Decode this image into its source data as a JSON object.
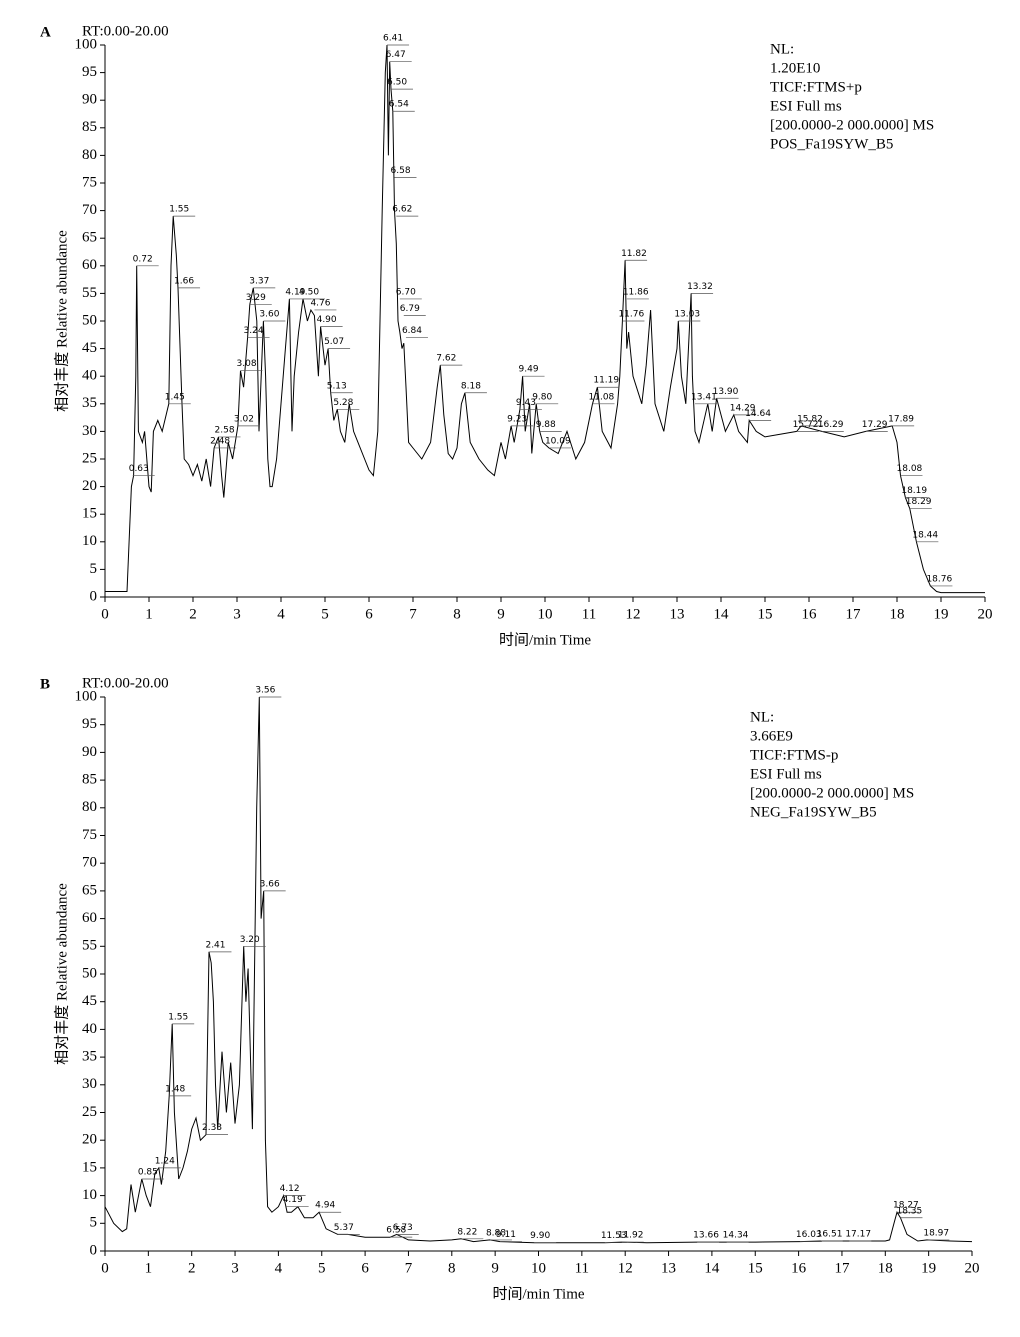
{
  "chart_data": [
    {
      "type": "line",
      "panel": "A",
      "range_label": "RT:0.00-20.00",
      "ylabel": "相对丰度 Relative abundance",
      "xlabel": "时间/min Time",
      "info": [
        "NL:",
        "1.20E10",
        "TICF:FTMS+p",
        "ESI Full ms",
        "[200.0000-2 000.0000] MS",
        "POS_Fa19SYW_B5"
      ],
      "color": "#000000",
      "xlim": [
        0,
        20
      ],
      "ylim": [
        0,
        100
      ],
      "xticks": [
        0,
        1,
        2,
        3,
        4,
        5,
        6,
        7,
        8,
        9,
        10,
        11,
        12,
        13,
        14,
        15,
        16,
        17,
        18,
        19,
        20
      ],
      "yticks": [
        0,
        5,
        10,
        15,
        20,
        25,
        30,
        35,
        40,
        45,
        50,
        55,
        60,
        65,
        70,
        75,
        80,
        85,
        90,
        95,
        100
      ],
      "x": [
        0,
        0.5,
        0.6,
        0.65,
        0.7,
        0.72,
        0.76,
        0.85,
        0.9,
        1.0,
        1.05,
        1.1,
        1.2,
        1.3,
        1.45,
        1.5,
        1.55,
        1.62,
        1.66,
        1.75,
        1.8,
        1.9,
        2.0,
        2.1,
        2.2,
        2.3,
        2.4,
        2.48,
        2.58,
        2.65,
        2.7,
        2.8,
        2.9,
        3.02,
        3.08,
        3.15,
        3.24,
        3.29,
        3.37,
        3.45,
        3.5,
        3.6,
        3.65,
        3.7,
        3.75,
        3.8,
        3.9,
        4.0,
        4.1,
        4.19,
        4.25,
        4.3,
        4.4,
        4.5,
        4.6,
        4.68,
        4.76,
        4.85,
        4.9,
        5.0,
        5.07,
        5.13,
        5.2,
        5.28,
        5.35,
        5.45,
        5.55,
        5.65,
        5.75,
        5.9,
        6.0,
        6.1,
        6.2,
        6.3,
        6.37,
        6.41,
        6.44,
        6.47,
        6.5,
        6.54,
        6.58,
        6.62,
        6.66,
        6.7,
        6.75,
        6.79,
        6.84,
        6.9,
        7.0,
        7.2,
        7.4,
        7.55,
        7.62,
        7.7,
        7.8,
        7.9,
        8.0,
        8.1,
        8.18,
        8.3,
        8.5,
        8.7,
        8.85,
        9.0,
        9.1,
        9.23,
        9.3,
        9.43,
        9.49,
        9.55,
        9.65,
        9.7,
        9.8,
        9.88,
        9.95,
        10.09,
        10.3,
        10.5,
        10.7,
        10.9,
        11.08,
        11.19,
        11.3,
        11.5,
        11.65,
        11.7,
        11.76,
        11.82,
        11.86,
        11.9,
        12.0,
        12.2,
        12.3,
        12.4,
        12.5,
        12.7,
        12.85,
        13.0,
        13.03,
        13.1,
        13.2,
        13.32,
        13.35,
        13.41,
        13.5,
        13.7,
        13.8,
        13.9,
        14.1,
        14.29,
        14.4,
        14.6,
        14.64,
        14.8,
        15.0,
        15.72,
        15.82,
        16.29,
        16.8,
        17.29,
        17.89,
        18.0,
        18.08,
        18.19,
        18.29,
        18.44,
        18.6,
        18.76,
        18.9,
        19,
        20
      ],
      "values": [
        1,
        1,
        20,
        22,
        40,
        60,
        30,
        28,
        30,
        20,
        19,
        30,
        32,
        30,
        35,
        60,
        69,
        62,
        56,
        35,
        25,
        24,
        22,
        24,
        21,
        25,
        20,
        27,
        29,
        22,
        18,
        28,
        25,
        31,
        41,
        38,
        47,
        53,
        56,
        50,
        30,
        50,
        40,
        25,
        20,
        20,
        25,
        35,
        45,
        54,
        30,
        40,
        48,
        54,
        50,
        52,
        51,
        40,
        49,
        42,
        45,
        37,
        32,
        34,
        30,
        28,
        35,
        30,
        28,
        25,
        23,
        22,
        30,
        70,
        95,
        100,
        80,
        97,
        92,
        88,
        70,
        64,
        50,
        48,
        45,
        46,
        38,
        28,
        27,
        25,
        28,
        38,
        42,
        33,
        26,
        25,
        27,
        35,
        37,
        28,
        25,
        23,
        22,
        28,
        25,
        31,
        28,
        34,
        40,
        30,
        35,
        26,
        35,
        30,
        28,
        27,
        26,
        30,
        25,
        28,
        35,
        38,
        30,
        27,
        35,
        40,
        50,
        61,
        45,
        48,
        40,
        35,
        42,
        52,
        35,
        30,
        38,
        45,
        50,
        40,
        35,
        55,
        40,
        30,
        28,
        35,
        30,
        36,
        30,
        33,
        30,
        28,
        32,
        30,
        29,
        30,
        31,
        30,
        29,
        30,
        31,
        28,
        22,
        18,
        16,
        10,
        5,
        2,
        1,
        0.8,
        0.8
      ],
      "annotations": [
        {
          "label": "0.63",
          "x": 0.63,
          "y": 22
        },
        {
          "label": "0.72",
          "x": 0.72,
          "y": 60
        },
        {
          "label": "1.45",
          "x": 1.45,
          "y": 35
        },
        {
          "label": "1.55",
          "x": 1.55,
          "y": 69
        },
        {
          "label": "1.66",
          "x": 1.66,
          "y": 56
        },
        {
          "label": "2.48",
          "x": 2.48,
          "y": 27
        },
        {
          "label": "2.58",
          "x": 2.58,
          "y": 29
        },
        {
          "label": "3.02",
          "x": 3.02,
          "y": 31
        },
        {
          "label": "3.08",
          "x": 3.08,
          "y": 41
        },
        {
          "label": "3.24",
          "x": 3.24,
          "y": 47
        },
        {
          "label": "3.29",
          "x": 3.29,
          "y": 53
        },
        {
          "label": "3.37",
          "x": 3.37,
          "y": 56
        },
        {
          "label": "3.60",
          "x": 3.6,
          "y": 50
        },
        {
          "label": "4.19",
          "x": 4.19,
          "y": 54
        },
        {
          "label": "4.50",
          "x": 4.5,
          "y": 54
        },
        {
          "label": "4.76",
          "x": 4.76,
          "y": 52
        },
        {
          "label": "4.90",
          "x": 4.9,
          "y": 49
        },
        {
          "label": "5.07",
          "x": 5.07,
          "y": 45
        },
        {
          "label": "5.13",
          "x": 5.13,
          "y": 37
        },
        {
          "label": "5.28",
          "x": 5.28,
          "y": 34
        },
        {
          "label": "6.41",
          "x": 6.41,
          "y": 100
        },
        {
          "label": "6.47",
          "x": 6.47,
          "y": 97
        },
        {
          "label": "6.50",
          "x": 6.5,
          "y": 92
        },
        {
          "label": "6.54",
          "x": 6.54,
          "y": 88
        },
        {
          "label": "6.58",
          "x": 6.58,
          "y": 76
        },
        {
          "label": "6.62",
          "x": 6.62,
          "y": 69
        },
        {
          "label": "6.70",
          "x": 6.7,
          "y": 54
        },
        {
          "label": "6.79",
          "x": 6.79,
          "y": 51
        },
        {
          "label": "6.84",
          "x": 6.84,
          "y": 47
        },
        {
          "label": "7.62",
          "x": 7.62,
          "y": 42
        },
        {
          "label": "8.18",
          "x": 8.18,
          "y": 37
        },
        {
          "label": "9.23",
          "x": 9.23,
          "y": 31
        },
        {
          "label": "9.43",
          "x": 9.43,
          "y": 34
        },
        {
          "label": "9.49",
          "x": 9.49,
          "y": 40
        },
        {
          "label": "9.80",
          "x": 9.8,
          "y": 35
        },
        {
          "label": "9.88",
          "x": 9.88,
          "y": 30
        },
        {
          "label": "10.09",
          "x": 10.09,
          "y": 27
        },
        {
          "label": "11.08",
          "x": 11.08,
          "y": 35
        },
        {
          "label": "11.19",
          "x": 11.19,
          "y": 38
        },
        {
          "label": "11.76",
          "x": 11.76,
          "y": 50
        },
        {
          "label": "11.82",
          "x": 11.82,
          "y": 61
        },
        {
          "label": "11.86",
          "x": 11.86,
          "y": 54
        },
        {
          "label": "13.03",
          "x": 13.03,
          "y": 50
        },
        {
          "label": "13.32",
          "x": 13.32,
          "y": 55
        },
        {
          "label": "13.41",
          "x": 13.41,
          "y": 35
        },
        {
          "label": "13.90",
          "x": 13.9,
          "y": 36
        },
        {
          "label": "14.29",
          "x": 14.29,
          "y": 33
        },
        {
          "label": "14.64",
          "x": 14.64,
          "y": 32
        },
        {
          "label": "15.72",
          "x": 15.72,
          "y": 30
        },
        {
          "label": "15.82",
          "x": 15.82,
          "y": 31
        },
        {
          "label": "16.29",
          "x": 16.29,
          "y": 30
        },
        {
          "label": "17.29",
          "x": 17.29,
          "y": 30
        },
        {
          "label": "17.89",
          "x": 17.89,
          "y": 31
        },
        {
          "label": "18.08",
          "x": 18.08,
          "y": 22
        },
        {
          "label": "18.19",
          "x": 18.19,
          "y": 18
        },
        {
          "label": "18.29",
          "x": 18.29,
          "y": 16
        },
        {
          "label": "18.44",
          "x": 18.44,
          "y": 10
        },
        {
          "label": "18.76",
          "x": 18.76,
          "y": 2
        }
      ]
    },
    {
      "type": "line",
      "panel": "B",
      "range_label": "RT:0.00-20.00",
      "ylabel": "相对丰度 Relative abundance",
      "xlabel": "时间/min Time",
      "info": [
        "NL:",
        "3.66E9",
        "TICF:FTMS-p",
        "ESI Full ms",
        "[200.0000-2 000.0000] MS",
        "NEG_Fa19SYW_B5"
      ],
      "color": "#000000",
      "xlim": [
        0,
        20
      ],
      "ylim": [
        0,
        100
      ],
      "xticks": [
        0,
        1,
        2,
        3,
        4,
        5,
        6,
        7,
        8,
        9,
        10,
        11,
        12,
        13,
        14,
        15,
        16,
        17,
        18,
        19,
        20
      ],
      "yticks": [
        0,
        5,
        10,
        15,
        20,
        25,
        30,
        35,
        40,
        45,
        50,
        55,
        60,
        65,
        70,
        75,
        80,
        85,
        90,
        95,
        100
      ],
      "x": [
        0,
        0.2,
        0.4,
        0.5,
        0.6,
        0.7,
        0.85,
        0.95,
        1.05,
        1.15,
        1.24,
        1.3,
        1.4,
        1.48,
        1.55,
        1.6,
        1.7,
        1.8,
        1.9,
        2.0,
        2.1,
        2.2,
        2.33,
        2.4,
        2.45,
        2.5,
        2.55,
        2.6,
        2.7,
        2.8,
        2.9,
        3.0,
        3.1,
        3.2,
        3.25,
        3.3,
        3.4,
        3.5,
        3.56,
        3.6,
        3.66,
        3.7,
        3.75,
        3.85,
        4.0,
        4.12,
        4.2,
        4.3,
        4.45,
        4.6,
        4.8,
        4.94,
        5.1,
        5.37,
        5.6,
        6.0,
        6.58,
        6.73,
        7.0,
        7.5,
        8.0,
        8.22,
        8.5,
        8.88,
        9.11,
        9.9,
        10.5,
        11.53,
        11.92,
        12.5,
        13.66,
        14.34,
        15,
        16.03,
        16.51,
        17.17,
        18.0,
        18.1,
        18.2,
        18.27,
        18.35,
        18.5,
        18.75,
        18.97,
        19.5,
        20
      ],
      "values": [
        8,
        5,
        3.5,
        4,
        12,
        7,
        13,
        10,
        8,
        14,
        15,
        12,
        18,
        28,
        41,
        25,
        13,
        15,
        18,
        22,
        24,
        20,
        21,
        54,
        52,
        45,
        30,
        22,
        36,
        25,
        34,
        23,
        30,
        55,
        45,
        51,
        22,
        80,
        100,
        60,
        65,
        20,
        8,
        7,
        8,
        10,
        7,
        7,
        8,
        6,
        6,
        7,
        4,
        3,
        3,
        2.5,
        2.5,
        3,
        2,
        1.8,
        2,
        2.2,
        1.7,
        2,
        1.7,
        1.5,
        1.5,
        1.5,
        1.6,
        1.5,
        1.6,
        1.6,
        1.6,
        1.7,
        1.8,
        1.8,
        1.8,
        2,
        5,
        7,
        6,
        3,
        1.8,
        2,
        1.8,
        1.7
      ],
      "annotations": [
        {
          "label": "0.85",
          "x": 0.85,
          "y": 13
        },
        {
          "label": "1.24",
          "x": 1.24,
          "y": 15
        },
        {
          "label": "1.48",
          "x": 1.48,
          "y": 28
        },
        {
          "label": "1.55",
          "x": 1.55,
          "y": 41
        },
        {
          "label": "2.33",
          "x": 2.33,
          "y": 21
        },
        {
          "label": "2.41",
          "x": 2.41,
          "y": 54
        },
        {
          "label": "3.20",
          "x": 3.2,
          "y": 55
        },
        {
          "label": "3.56",
          "x": 3.56,
          "y": 100
        },
        {
          "label": "3.66",
          "x": 3.66,
          "y": 65
        },
        {
          "label": "4.12",
          "x": 4.12,
          "y": 10
        },
        {
          "label": "4.19",
          "x": 4.19,
          "y": 8
        },
        {
          "label": "4.94",
          "x": 4.94,
          "y": 7
        },
        {
          "label": "5.37",
          "x": 5.37,
          "y": 3
        },
        {
          "label": "6.58",
          "x": 6.58,
          "y": 2.5
        },
        {
          "label": "6.73",
          "x": 6.73,
          "y": 3
        },
        {
          "label": "8.22",
          "x": 8.22,
          "y": 2.2
        },
        {
          "label": "8.88",
          "x": 8.88,
          "y": 2
        },
        {
          "label": "9.11",
          "x": 9.11,
          "y": 1.7
        },
        {
          "label": "9.90",
          "x": 9.9,
          "y": 1.5
        },
        {
          "label": "11.53",
          "x": 11.53,
          "y": 1.5
        },
        {
          "label": "11.92",
          "x": 11.92,
          "y": 1.6
        },
        {
          "label": "13.66",
          "x": 13.66,
          "y": 1.6
        },
        {
          "label": "14.34",
          "x": 14.34,
          "y": 1.6
        },
        {
          "label": "16.03",
          "x": 16.03,
          "y": 1.7
        },
        {
          "label": "16.51",
          "x": 16.51,
          "y": 1.8
        },
        {
          "label": "17.17",
          "x": 17.17,
          "y": 1.8
        },
        {
          "label": "18.27",
          "x": 18.27,
          "y": 7
        },
        {
          "label": "18.35",
          "x": 18.35,
          "y": 6
        },
        {
          "label": "18.97",
          "x": 18.97,
          "y": 2
        }
      ]
    }
  ]
}
